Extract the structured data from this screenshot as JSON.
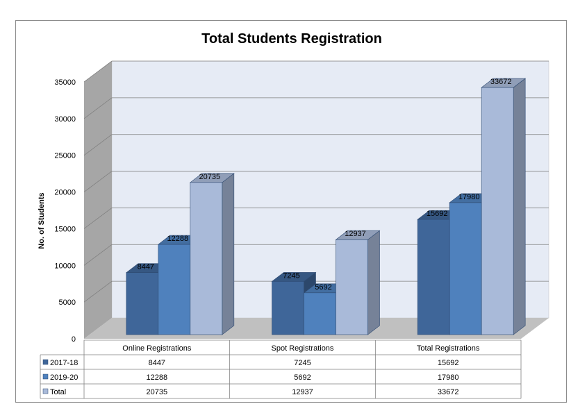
{
  "chart_data": {
    "type": "bar",
    "title": "Total Students Registration",
    "ylabel": "No. of Students",
    "xlabel": "",
    "ylim": [
      0,
      35000
    ],
    "yticks": [
      0,
      5000,
      10000,
      15000,
      20000,
      25000,
      30000,
      35000
    ],
    "categories": [
      "Online Registrations",
      "Spot Registrations",
      "Total Registrations"
    ],
    "series": [
      {
        "name": "2017-18",
        "values": [
          8447,
          7245,
          15692
        ],
        "color": "#3f6699"
      },
      {
        "name": "2019-20",
        "values": [
          12288,
          5692,
          17980
        ],
        "color": "#4f81bd"
      },
      {
        "name": "Total",
        "values": [
          20735,
          12937,
          33672
        ],
        "color": "#a9bad9"
      }
    ],
    "grid": true,
    "legend": "data-table",
    "plot_colors": {
      "back_wall": "#e6ebf5",
      "side_wall": "#a6a6a6",
      "floor": "#c0c0c0",
      "grid": "#808080"
    }
  }
}
